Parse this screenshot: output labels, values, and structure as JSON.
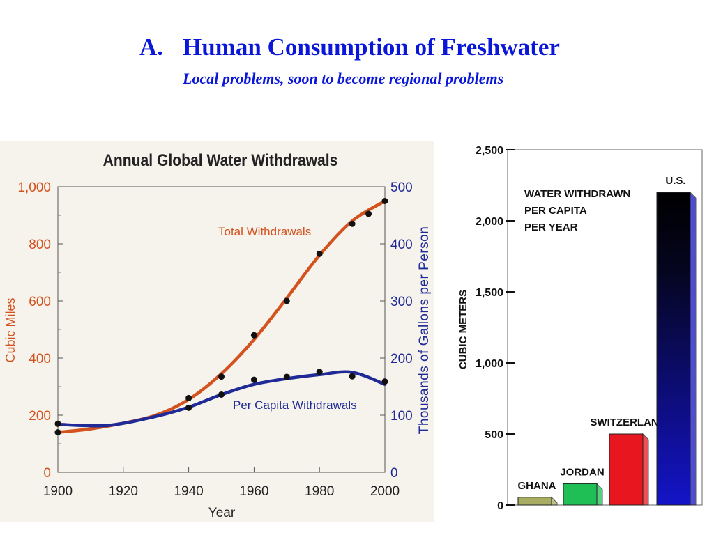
{
  "slide": {
    "letter": "A.",
    "title": "Human Consumption of Freshwater",
    "subtitle": "Local problems, soon to become regional problems"
  },
  "chart_data": [
    {
      "type": "line",
      "title": "Annual Global Water Withdrawals",
      "xlabel": "Year",
      "ylabel": "Cubic Miles",
      "ylabel_right": "Thousands of Gallons per Person",
      "xlim": [
        1900,
        2000
      ],
      "ylim": [
        0,
        1000
      ],
      "ylim_right": [
        0,
        500
      ],
      "x_ticks": [
        "1900",
        "1920",
        "1940",
        "1960",
        "1980",
        "2000"
      ],
      "y_ticks": [
        "0",
        "200",
        "400",
        "600",
        "800",
        "1,000"
      ],
      "y_ticks_right": [
        "0",
        "100",
        "200",
        "300",
        "400",
        "500"
      ],
      "series": [
        {
          "name": "Total Withdrawals",
          "axis": "left",
          "color": "#d3531f",
          "curve": [
            [
              1900,
              140
            ],
            [
              1910,
              152
            ],
            [
              1920,
              172
            ],
            [
              1930,
              200
            ],
            [
              1940,
              255
            ],
            [
              1950,
              345
            ],
            [
              1960,
              465
            ],
            [
              1970,
              610
            ],
            [
              1980,
              760
            ],
            [
              1990,
              880
            ],
            [
              2000,
              950
            ]
          ],
          "points": [
            [
              1900,
              140
            ],
            [
              1940,
              260
            ],
            [
              1950,
              335
            ],
            [
              1960,
              480
            ],
            [
              1970,
              600
            ],
            [
              1980,
              765
            ],
            [
              1990,
              870
            ],
            [
              1995,
              905
            ],
            [
              2000,
              950
            ]
          ]
        },
        {
          "name": "Per Capita Withdrawals",
          "axis": "right",
          "color": "#1f2a96",
          "curve": [
            [
              1900,
              84
            ],
            [
              1915,
              82
            ],
            [
              1930,
              98
            ],
            [
              1940,
              114
            ],
            [
              1950,
              136
            ],
            [
              1960,
              154
            ],
            [
              1970,
              164
            ],
            [
              1980,
              171
            ],
            [
              1990,
              175
            ],
            [
              2000,
              154
            ]
          ],
          "points": [
            [
              1900,
              85
            ],
            [
              1940,
              113
            ],
            [
              1950,
              136
            ],
            [
              1960,
              162
            ],
            [
              1970,
              167
            ],
            [
              1980,
              176
            ],
            [
              1990,
              168
            ],
            [
              2000,
              159
            ]
          ]
        }
      ]
    },
    {
      "type": "bar",
      "title": "WATER WITHDRAWN PER CAPITA PER YEAR",
      "title_lines": [
        "WATER WITHDRAWN",
        "PER CAPITA",
        "PER YEAR"
      ],
      "ylabel": "CUBIC METERS",
      "ylim": [
        0,
        2500
      ],
      "y_ticks": [
        "0",
        "500",
        "1,000",
        "1,500",
        "2,000",
        "2,500"
      ],
      "categories": [
        "GHANA",
        "JORDAN",
        "SWITZERLAND",
        "U.S."
      ],
      "values": [
        55,
        150,
        500,
        2200
      ],
      "colors": [
        "#a9ad63",
        "#1fbf56",
        "#e8161f",
        "#1414c8"
      ]
    }
  ]
}
